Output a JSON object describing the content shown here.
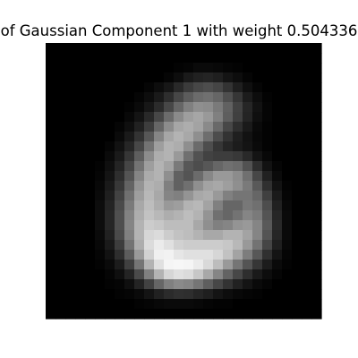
{
  "chart_data": {
    "type": "heatmap",
    "title": "of Gaussian Component 1 with weight 0.504336",
    "xlabel": "",
    "ylabel": "",
    "colormap": "gray",
    "axes_visible": false,
    "grid": false,
    "vrange": [
      0,
      1
    ],
    "size": [
      28,
      28
    ],
    "values": [
      [
        0,
        0,
        0,
        0,
        0,
        0,
        0,
        0,
        0,
        0,
        0,
        0,
        0,
        0,
        0,
        0,
        0,
        0,
        0,
        0,
        0,
        0,
        0,
        0,
        0,
        0,
        0,
        0
      ],
      [
        0,
        0,
        0,
        0,
        0,
        0,
        0,
        0,
        0,
        0,
        0,
        0,
        0,
        0,
        0,
        0,
        0,
        0,
        0,
        0,
        0,
        0,
        0,
        0,
        0,
        0,
        0,
        0
      ],
      [
        0,
        0,
        0,
        0,
        0,
        0,
        0,
        0,
        0,
        0,
        0,
        0,
        0,
        0.01,
        0.02,
        0.04,
        0.04,
        0.03,
        0.02,
        0.01,
        0,
        0,
        0,
        0,
        0,
        0,
        0,
        0
      ],
      [
        0,
        0,
        0,
        0,
        0,
        0,
        0,
        0,
        0,
        0,
        0,
        0,
        0.02,
        0.05,
        0.1,
        0.13,
        0.14,
        0.12,
        0.08,
        0.05,
        0.02,
        0,
        0,
        0,
        0,
        0,
        0,
        0
      ],
      [
        0,
        0,
        0,
        0,
        0,
        0,
        0,
        0,
        0,
        0,
        0.02,
        0.05,
        0.09,
        0.16,
        0.23,
        0.28,
        0.3,
        0.27,
        0.2,
        0.12,
        0.06,
        0.02,
        0,
        0,
        0,
        0,
        0,
        0
      ],
      [
        0,
        0,
        0,
        0,
        0,
        0,
        0,
        0,
        0,
        0.02,
        0.05,
        0.1,
        0.18,
        0.28,
        0.36,
        0.42,
        0.44,
        0.4,
        0.31,
        0.21,
        0.11,
        0.05,
        0.01,
        0,
        0,
        0,
        0,
        0
      ],
      [
        0,
        0,
        0,
        0,
        0,
        0,
        0,
        0,
        0.01,
        0.04,
        0.09,
        0.17,
        0.28,
        0.4,
        0.5,
        0.56,
        0.55,
        0.48,
        0.38,
        0.26,
        0.15,
        0.07,
        0.02,
        0,
        0,
        0,
        0,
        0
      ],
      [
        0,
        0,
        0,
        0,
        0,
        0,
        0,
        0,
        0.03,
        0.08,
        0.16,
        0.28,
        0.42,
        0.54,
        0.62,
        0.65,
        0.6,
        0.5,
        0.37,
        0.25,
        0.14,
        0.06,
        0.02,
        0,
        0,
        0,
        0,
        0
      ],
      [
        0,
        0,
        0,
        0,
        0,
        0,
        0,
        0.02,
        0.06,
        0.13,
        0.24,
        0.4,
        0.55,
        0.65,
        0.68,
        0.64,
        0.54,
        0.41,
        0.28,
        0.18,
        0.1,
        0.04,
        0.01,
        0,
        0,
        0,
        0,
        0
      ],
      [
        0,
        0,
        0,
        0,
        0,
        0,
        0,
        0.04,
        0.1,
        0.2,
        0.34,
        0.52,
        0.65,
        0.7,
        0.66,
        0.56,
        0.43,
        0.3,
        0.2,
        0.12,
        0.07,
        0.03,
        0.01,
        0,
        0,
        0,
        0,
        0
      ],
      [
        0,
        0,
        0,
        0,
        0,
        0,
        0.02,
        0.07,
        0.15,
        0.28,
        0.45,
        0.62,
        0.7,
        0.68,
        0.56,
        0.42,
        0.3,
        0.21,
        0.15,
        0.11,
        0.08,
        0.04,
        0.01,
        0,
        0,
        0,
        0,
        0
      ],
      [
        0,
        0,
        0,
        0,
        0,
        0,
        0.04,
        0.1,
        0.21,
        0.37,
        0.55,
        0.68,
        0.7,
        0.6,
        0.44,
        0.32,
        0.26,
        0.24,
        0.24,
        0.22,
        0.16,
        0.08,
        0.03,
        0,
        0,
        0,
        0,
        0
      ],
      [
        0,
        0,
        0,
        0,
        0,
        0.01,
        0.06,
        0.14,
        0.27,
        0.45,
        0.62,
        0.7,
        0.64,
        0.48,
        0.34,
        0.3,
        0.34,
        0.4,
        0.44,
        0.42,
        0.32,
        0.18,
        0.07,
        0.02,
        0,
        0,
        0,
        0
      ],
      [
        0,
        0,
        0,
        0,
        0,
        0.02,
        0.08,
        0.18,
        0.33,
        0.52,
        0.67,
        0.7,
        0.56,
        0.38,
        0.33,
        0.42,
        0.53,
        0.6,
        0.6,
        0.55,
        0.44,
        0.28,
        0.13,
        0.04,
        0,
        0,
        0,
        0
      ],
      [
        0,
        0,
        0,
        0,
        0,
        0.03,
        0.1,
        0.22,
        0.39,
        0.58,
        0.7,
        0.68,
        0.5,
        0.38,
        0.44,
        0.56,
        0.64,
        0.66,
        0.62,
        0.56,
        0.48,
        0.35,
        0.19,
        0.07,
        0.01,
        0,
        0,
        0
      ],
      [
        0,
        0,
        0,
        0,
        0,
        0.04,
        0.12,
        0.26,
        0.44,
        0.62,
        0.72,
        0.66,
        0.52,
        0.5,
        0.58,
        0.66,
        0.68,
        0.6,
        0.5,
        0.46,
        0.46,
        0.4,
        0.25,
        0.1,
        0.02,
        0,
        0,
        0
      ],
      [
        0,
        0,
        0,
        0,
        0,
        0.05,
        0.14,
        0.29,
        0.48,
        0.66,
        0.74,
        0.68,
        0.6,
        0.62,
        0.7,
        0.72,
        0.64,
        0.5,
        0.4,
        0.4,
        0.47,
        0.44,
        0.3,
        0.13,
        0.03,
        0,
        0,
        0
      ],
      [
        0,
        0,
        0,
        0,
        0,
        0.05,
        0.15,
        0.31,
        0.51,
        0.68,
        0.76,
        0.72,
        0.68,
        0.7,
        0.74,
        0.7,
        0.58,
        0.44,
        0.4,
        0.45,
        0.52,
        0.48,
        0.33,
        0.15,
        0.04,
        0,
        0,
        0
      ],
      [
        0,
        0,
        0,
        0,
        0,
        0.05,
        0.15,
        0.31,
        0.52,
        0.7,
        0.8,
        0.78,
        0.74,
        0.74,
        0.74,
        0.66,
        0.56,
        0.5,
        0.52,
        0.58,
        0.6,
        0.52,
        0.35,
        0.16,
        0.04,
        0,
        0,
        0
      ],
      [
        0,
        0,
        0,
        0,
        0,
        0.04,
        0.13,
        0.29,
        0.5,
        0.7,
        0.84,
        0.86,
        0.8,
        0.76,
        0.74,
        0.7,
        0.66,
        0.66,
        0.7,
        0.7,
        0.64,
        0.52,
        0.33,
        0.15,
        0.04,
        0,
        0,
        0
      ],
      [
        0,
        0,
        0,
        0,
        0,
        0.03,
        0.1,
        0.24,
        0.45,
        0.68,
        0.86,
        0.92,
        0.88,
        0.82,
        0.8,
        0.8,
        0.8,
        0.8,
        0.78,
        0.72,
        0.6,
        0.45,
        0.27,
        0.12,
        0.03,
        0,
        0,
        0
      ],
      [
        0,
        0,
        0,
        0,
        0,
        0.02,
        0.07,
        0.18,
        0.36,
        0.6,
        0.82,
        0.94,
        0.95,
        0.9,
        0.88,
        0.88,
        0.88,
        0.84,
        0.76,
        0.64,
        0.49,
        0.34,
        0.19,
        0.08,
        0.02,
        0,
        0,
        0
      ],
      [
        0,
        0,
        0,
        0,
        0,
        0.01,
        0.04,
        0.11,
        0.25,
        0.46,
        0.7,
        0.88,
        0.96,
        0.97,
        0.96,
        0.92,
        0.85,
        0.74,
        0.6,
        0.46,
        0.33,
        0.21,
        0.11,
        0.04,
        0.01,
        0,
        0,
        0
      ],
      [
        0,
        0,
        0,
        0,
        0,
        0,
        0.02,
        0.06,
        0.14,
        0.29,
        0.5,
        0.7,
        0.84,
        0.88,
        0.86,
        0.78,
        0.66,
        0.52,
        0.39,
        0.28,
        0.18,
        0.1,
        0.05,
        0.02,
        0,
        0,
        0,
        0
      ],
      [
        0,
        0,
        0,
        0,
        0,
        0,
        0.01,
        0.02,
        0.06,
        0.14,
        0.26,
        0.4,
        0.5,
        0.54,
        0.52,
        0.46,
        0.37,
        0.28,
        0.2,
        0.13,
        0.08,
        0.04,
        0.02,
        0,
        0,
        0,
        0,
        0
      ],
      [
        0,
        0,
        0,
        0,
        0,
        0,
        0,
        0.01,
        0.02,
        0.04,
        0.08,
        0.13,
        0.17,
        0.19,
        0.18,
        0.15,
        0.12,
        0.08,
        0.05,
        0.03,
        0.02,
        0.01,
        0,
        0,
        0,
        0,
        0,
        0
      ],
      [
        0,
        0,
        0,
        0,
        0,
        0,
        0,
        0,
        0,
        0.01,
        0.02,
        0.03,
        0.04,
        0.04,
        0.04,
        0.03,
        0.02,
        0.01,
        0.01,
        0,
        0,
        0,
        0,
        0,
        0,
        0,
        0,
        0
      ],
      [
        0,
        0,
        0,
        0,
        0,
        0,
        0,
        0,
        0,
        0,
        0,
        0,
        0,
        0,
        0,
        0,
        0,
        0,
        0,
        0,
        0,
        0,
        0,
        0,
        0,
        0,
        0,
        0
      ]
    ]
  }
}
